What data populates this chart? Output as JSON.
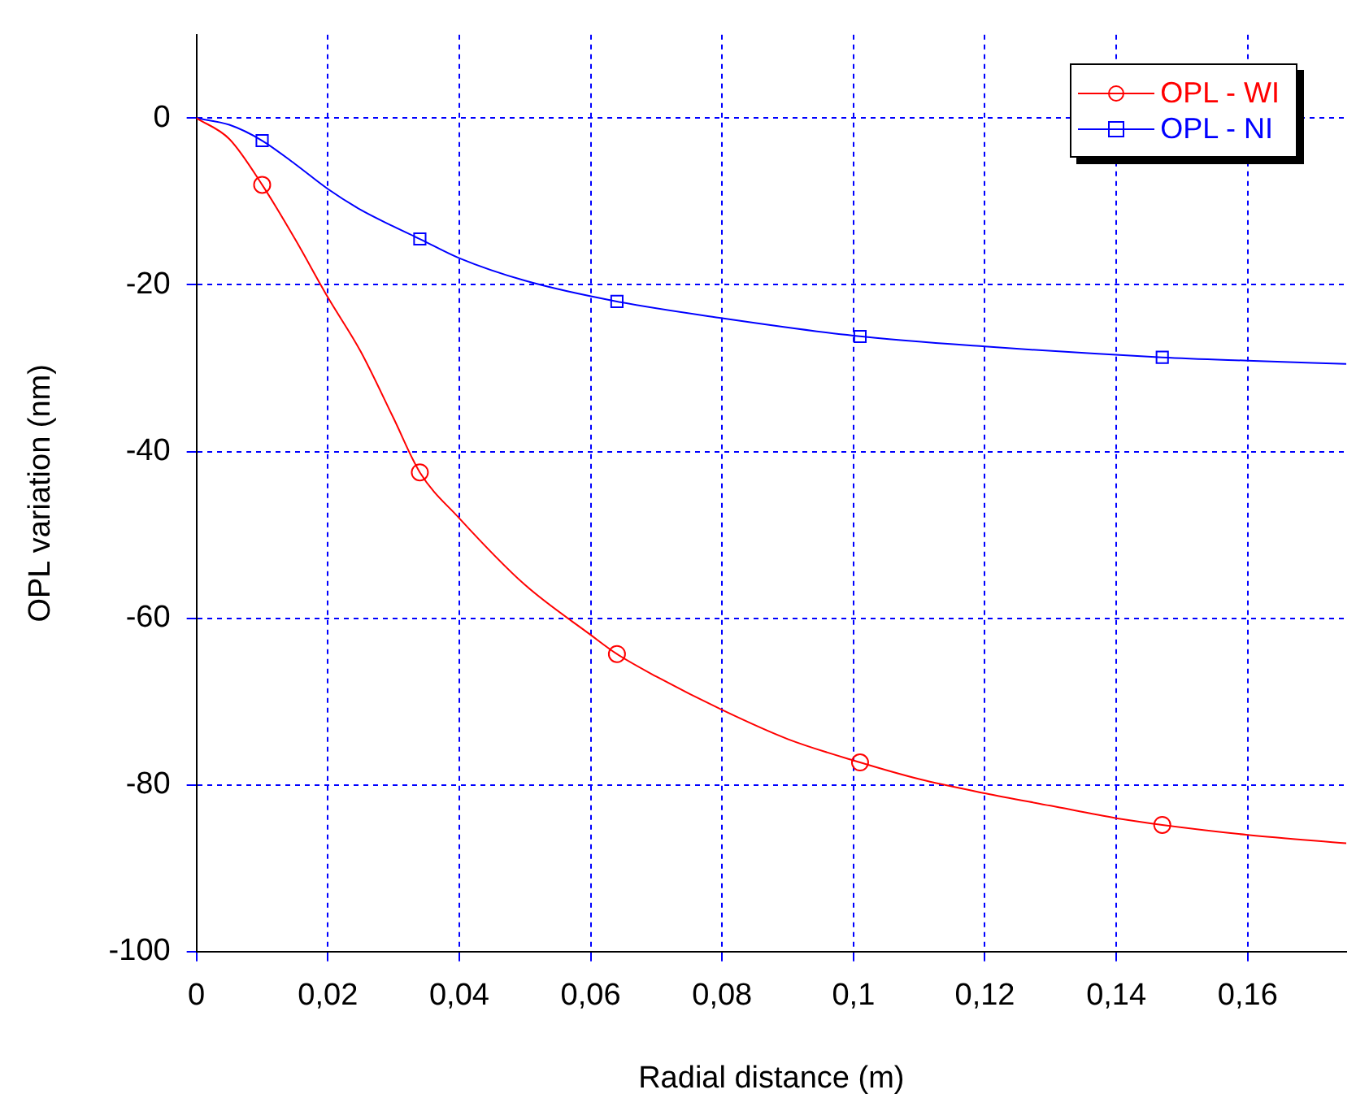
{
  "chart_data": {
    "type": "line",
    "xlabel": "Radial distance (m)",
    "ylabel": "OPL variation (nm)",
    "xlim": [
      0,
      0.175
    ],
    "ylim": [
      -100,
      10
    ],
    "xticks": [
      0,
      {
        "value": 0.02,
        "label": "0,02"
      },
      {
        "value": 0.04,
        "label": "0,04"
      },
      {
        "value": 0.06,
        "label": "0,06"
      },
      {
        "value": 0.08,
        "label": "0,08"
      },
      {
        "value": 0.1,
        "label": "0,1"
      },
      {
        "value": 0.12,
        "label": "0,12"
      },
      {
        "value": 0.14,
        "label": "0,14"
      },
      {
        "value": 0.16,
        "label": "0,16"
      }
    ],
    "yticks": [
      -100,
      -80,
      -60,
      -40,
      -20,
      0
    ],
    "grid": true,
    "legend": "top right",
    "line_style": "solid",
    "series": [
      {
        "type": "line",
        "marker": "none",
        "color": "#ff0000",
        "x": [
          0,
          0.005,
          0.01,
          0.015,
          0.02,
          0.025,
          0.03,
          0.034,
          0.04,
          0.05,
          0.06,
          0.064,
          0.07,
          0.08,
          0.09,
          0.101,
          0.11,
          0.12,
          0.13,
          0.14,
          0.147,
          0.16,
          0.175
        ],
        "values": [
          0,
          -2.5,
          -8,
          -14.5,
          -21.5,
          -28,
          -36,
          -42.5,
          -48,
          -56,
          -62,
          -64.3,
          -67,
          -71,
          -74.5,
          -77.3,
          -79.3,
          -81,
          -82.5,
          -84,
          -84.8,
          -86,
          -87
        ]
      },
      {
        "type": "line",
        "marker": "none",
        "color": "#0000ff",
        "x": [
          0,
          0.005,
          0.01,
          0.015,
          0.02,
          0.025,
          0.03,
          0.034,
          0.04,
          0.05,
          0.064,
          0.08,
          0.1,
          0.12,
          0.147,
          0.16,
          0.175
        ],
        "values": [
          0,
          -0.8,
          -2.7,
          -5.5,
          -8.5,
          -11,
          -13,
          -14.5,
          -16.8,
          -19.5,
          -22,
          -24,
          -26.1,
          -27.4,
          -28.7,
          -29.1,
          -29.5
        ]
      },
      {
        "type": "scatter",
        "marker": "circle",
        "name": "OPL - WI",
        "color": "#ff0000",
        "x": [
          0.01,
          0.034,
          0.064,
          0.101,
          0.147
        ],
        "values": [
          -8,
          -42.5,
          -64.3,
          -77.3,
          -84.8
        ]
      },
      {
        "type": "scatter",
        "marker": "square",
        "name": "OPL - NI",
        "color": "#0000ff",
        "x": [
          0.01,
          0.034,
          0.064,
          0.101,
          0.147
        ],
        "values": [
          -2.7,
          -14.5,
          -22,
          -26.2,
          -28.7
        ]
      }
    ]
  }
}
